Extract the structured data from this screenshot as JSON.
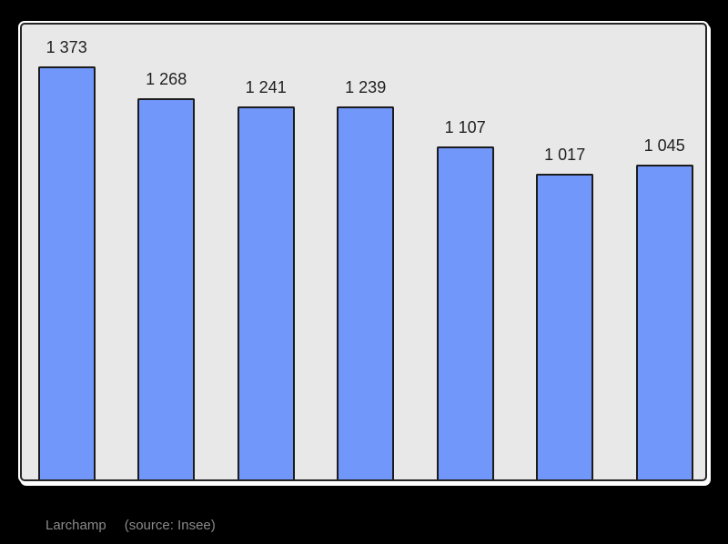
{
  "page": {
    "background_color": "#000000",
    "plot_background_color": "#e8e8e8",
    "frame_border_color": "#262626",
    "frame_outline_color": "#ffffff"
  },
  "caption": {
    "title": "Larchamp",
    "source": "(source: Insee)"
  },
  "chart_data": {
    "type": "bar",
    "values": [
      1373,
      1268,
      1241,
      1239,
      1107,
      1017,
      1045
    ],
    "value_labels": [
      "1 373",
      "1 268",
      "1 241",
      "1 239",
      "1 107",
      "1 017",
      "1 045"
    ],
    "title": "",
    "xlabel": "",
    "ylabel": "",
    "ylim": [
      0,
      1512
    ],
    "grid": false,
    "legend_position": "none",
    "bar_color": "#7197fa",
    "bar_border_color": "#1c1c1c",
    "value_label_color": "#1f1f1f",
    "annotations": [
      "Larchamp",
      "(source: Insee)"
    ]
  }
}
